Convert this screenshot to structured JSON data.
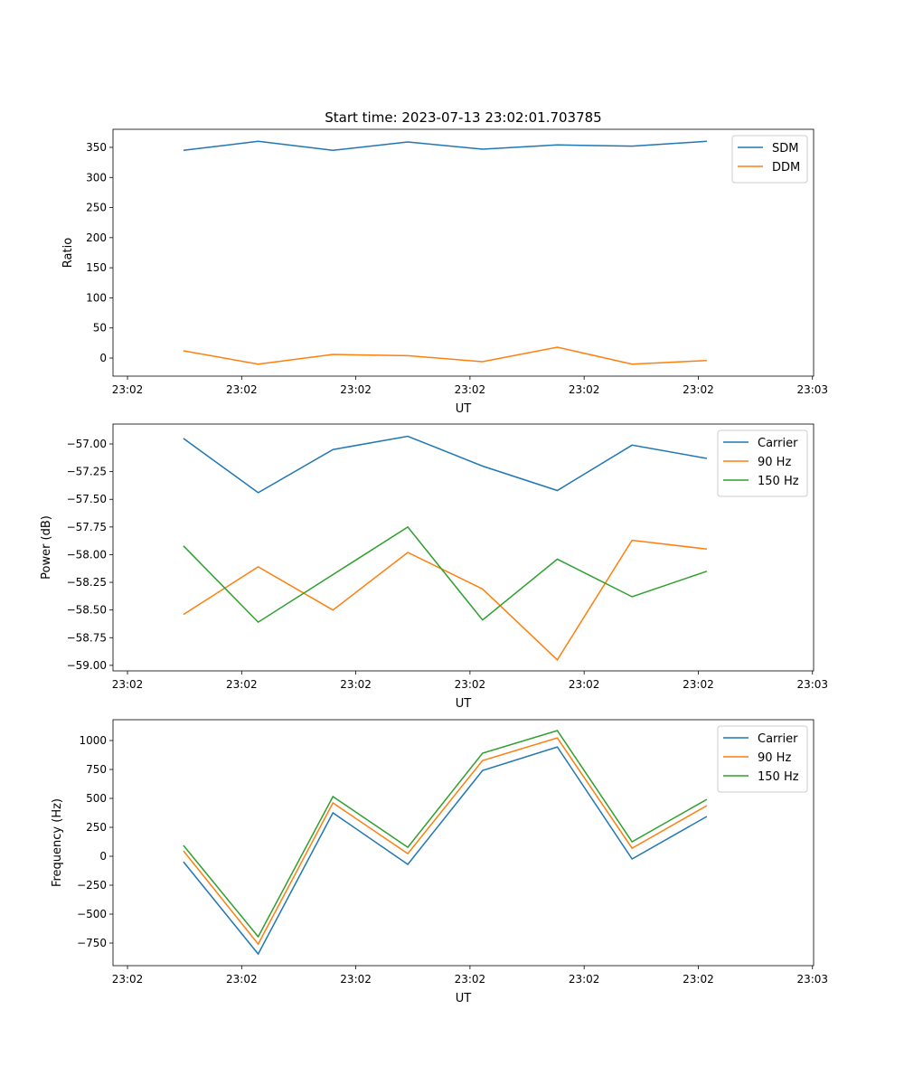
{
  "chart_data": [
    {
      "type": "line",
      "title": "Start time: 2023-07-13 23:02:01.703785",
      "xlabel": "UT",
      "ylabel": "Ratio",
      "x_tick_labels": [
        "23:02",
        "23:02",
        "23:02",
        "23:02",
        "23:02",
        "23:02",
        "23:03"
      ],
      "xlim": [
        -0.127,
        6.01
      ],
      "x": [
        0.49,
        1.145,
        1.8,
        2.455,
        3.11,
        3.765,
        4.42,
        5.075
      ],
      "y_ticks": [
        0,
        50,
        100,
        150,
        200,
        250,
        300,
        350
      ],
      "y_tick_labels": [
        "0",
        "50",
        "100",
        "150",
        "200",
        "250",
        "300",
        "350"
      ],
      "ylim": [
        -30,
        380
      ],
      "legend": "top-right",
      "series": [
        {
          "name": "SDM",
          "color": "#1f77b4",
          "values": [
            345,
            360,
            345,
            359,
            347,
            354,
            352,
            360
          ]
        },
        {
          "name": "DDM",
          "color": "#ff7f0e",
          "values": [
            12,
            -10,
            6,
            4,
            -6,
            18,
            -10,
            -4
          ]
        }
      ]
    },
    {
      "type": "line",
      "title": "",
      "xlabel": "UT",
      "ylabel": "Power (dB)",
      "x_tick_labels": [
        "23:02",
        "23:02",
        "23:02",
        "23:02",
        "23:02",
        "23:02",
        "23:03"
      ],
      "xlim": [
        -0.127,
        6.01
      ],
      "x": [
        0.49,
        1.145,
        1.8,
        2.455,
        3.11,
        3.765,
        4.42,
        5.075
      ],
      "y_ticks": [
        -59.0,
        -58.75,
        -58.5,
        -58.25,
        -58.0,
        -57.75,
        -57.5,
        -57.25,
        -57.0
      ],
      "y_tick_labels": [
        "−59.00",
        "−58.75",
        "−58.50",
        "−58.25",
        "−58.00",
        "−57.75",
        "−57.50",
        "−57.25",
        "−57.00"
      ],
      "ylim": [
        -59.05,
        -56.82
      ],
      "legend": "top-right",
      "series": [
        {
          "name": "Carrier",
          "color": "#1f77b4",
          "values": [
            -56.95,
            -57.44,
            -57.05,
            -56.93,
            -57.2,
            -57.42,
            -57.01,
            -57.13
          ]
        },
        {
          "name": "90 Hz",
          "color": "#ff7f0e",
          "values": [
            -58.54,
            -58.11,
            -58.5,
            -57.98,
            -58.31,
            -58.95,
            -57.87,
            -57.95
          ]
        },
        {
          "name": "150 Hz",
          "color": "#2ca02c",
          "values": [
            -57.92,
            -58.61,
            -58.18,
            -57.75,
            -58.59,
            -58.04,
            -58.38,
            -58.15
          ]
        }
      ]
    },
    {
      "type": "line",
      "title": "",
      "xlabel": "UT",
      "ylabel": "Frequency (Hz)",
      "x_tick_labels": [
        "23:02",
        "23:02",
        "23:02",
        "23:02",
        "23:02",
        "23:02",
        "23:03"
      ],
      "xlim": [
        -0.127,
        6.01
      ],
      "x": [
        0.49,
        1.145,
        1.8,
        2.455,
        3.11,
        3.765,
        4.42,
        5.075
      ],
      "y_ticks": [
        -750,
        -500,
        -250,
        0,
        250,
        500,
        750,
        1000
      ],
      "y_tick_labels": [
        "−750",
        "−500",
        "−250",
        "0",
        "250",
        "500",
        "750",
        "1000"
      ],
      "ylim": [
        -945,
        1180
      ],
      "legend": "top-right",
      "series": [
        {
          "name": "Carrier",
          "color": "#1f77b4",
          "values": [
            -47,
            -844,
            375,
            -70,
            742,
            945,
            -23,
            344
          ]
        },
        {
          "name": "90 Hz",
          "color": "#ff7f0e",
          "values": [
            47,
            -758,
            461,
            23,
            828,
            1023,
            70,
            438
          ]
        },
        {
          "name": "150 Hz",
          "color": "#2ca02c",
          "values": [
            94,
            -695,
            516,
            78,
            891,
            1086,
            125,
            492
          ]
        }
      ]
    }
  ]
}
